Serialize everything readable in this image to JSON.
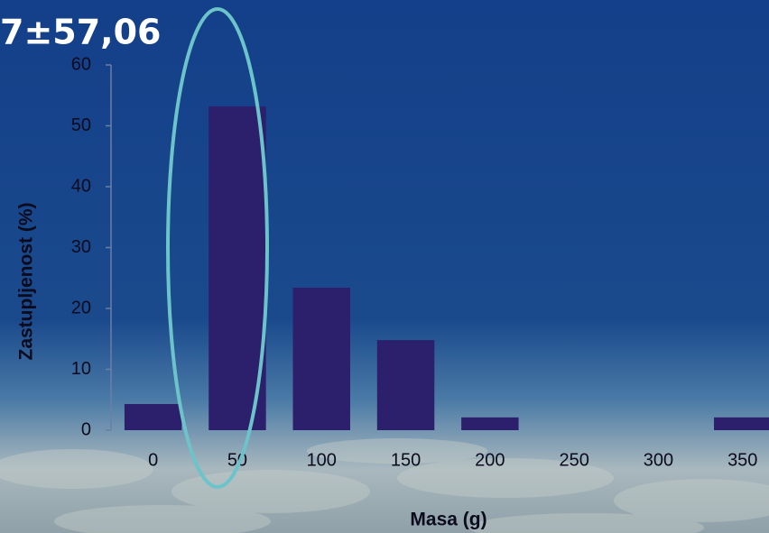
{
  "chart_data": {
    "type": "bar",
    "title": "7±57,06",
    "categories": [
      "0",
      "50",
      "100",
      "150",
      "200",
      "250",
      "300",
      "350"
    ],
    "values": [
      4.3,
      53.2,
      23.4,
      14.8,
      2.1,
      0,
      0,
      2.1
    ],
    "color": "#2c1f6b",
    "xlabel": "Masa (g)",
    "ylabel": "Zastupljenost (%)",
    "ylim": [
      0,
      60
    ],
    "yticks": [
      0,
      10,
      20,
      30,
      40,
      50,
      60
    ],
    "grid": false
  }
}
